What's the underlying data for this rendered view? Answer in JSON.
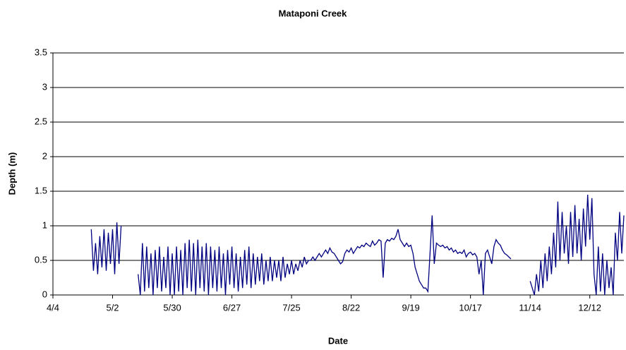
{
  "chart_data": {
    "type": "line",
    "title": "Mataponi Creek",
    "x_label": "Date",
    "y_label": "Depth (m)",
    "xlim": [
      94,
      362
    ],
    "xticks": [
      {
        "value": 94,
        "label": "4/4"
      },
      {
        "value": 122,
        "label": "5/2"
      },
      {
        "value": 150,
        "label": "5/30"
      },
      {
        "value": 178,
        "label": "6/27"
      },
      {
        "value": 206,
        "label": "7/25"
      },
      {
        "value": 234,
        "label": "8/22"
      },
      {
        "value": 262,
        "label": "9/19"
      },
      {
        "value": 290,
        "label": "10/17"
      },
      {
        "value": 318,
        "label": "11/14"
      },
      {
        "value": 346,
        "label": "12/12"
      }
    ],
    "ylim": [
      0,
      3.5
    ],
    "yticks": [
      0,
      0.5,
      1,
      1.5,
      2,
      2.5,
      3,
      3.5
    ],
    "grid": true,
    "x": [
      112,
      113,
      114,
      115,
      116,
      117,
      118,
      119,
      120,
      121,
      122,
      123,
      124,
      125,
      126,
      127,
      134,
      135,
      136,
      137,
      138,
      139,
      140,
      141,
      142,
      143,
      144,
      145,
      146,
      147,
      148,
      149,
      150,
      151,
      152,
      153,
      154,
      155,
      156,
      157,
      158,
      159,
      160,
      161,
      162,
      163,
      164,
      165,
      166,
      167,
      168,
      169,
      170,
      171,
      172,
      173,
      174,
      175,
      176,
      177,
      178,
      179,
      180,
      181,
      182,
      183,
      184,
      185,
      186,
      187,
      188,
      189,
      190,
      191,
      192,
      193,
      194,
      195,
      196,
      197,
      198,
      199,
      200,
      201,
      202,
      203,
      204,
      205,
      206,
      207,
      208,
      209,
      210,
      211,
      212,
      213,
      214,
      215,
      216,
      217,
      218,
      219,
      220,
      221,
      222,
      223,
      224,
      225,
      226,
      227,
      228,
      229,
      230,
      231,
      232,
      233,
      234,
      235,
      236,
      237,
      238,
      239,
      240,
      241,
      242,
      243,
      244,
      245,
      246,
      247,
      248,
      249,
      250,
      251,
      252,
      253,
      254,
      255,
      256,
      257,
      258,
      259,
      260,
      261,
      262,
      263,
      264,
      265,
      266,
      267,
      268,
      269,
      270,
      271,
      272,
      273,
      274,
      275,
      276,
      277,
      278,
      279,
      280,
      281,
      282,
      283,
      284,
      285,
      286,
      287,
      288,
      289,
      290,
      291,
      292,
      293,
      294,
      295,
      296,
      297,
      298,
      299,
      300,
      301,
      302,
      303,
      304,
      305,
      306,
      307,
      308,
      309,
      310,
      318,
      319,
      320,
      321,
      322,
      323,
      324,
      325,
      326,
      327,
      328,
      329,
      330,
      331,
      332,
      333,
      334,
      335,
      336,
      337,
      338,
      339,
      340,
      341,
      342,
      343,
      344,
      345,
      346,
      347,
      348,
      349,
      350,
      351,
      352,
      353,
      354,
      355,
      356,
      357,
      358,
      359,
      360,
      361,
      362
    ],
    "series": [
      {
        "name": "Depth",
        "color": "#000080",
        "values": [
          0.95,
          0.35,
          0.75,
          0.3,
          0.85,
          0.4,
          0.95,
          0.35,
          0.9,
          0.45,
          0.95,
          0.3,
          1.05,
          0.45,
          1.0,
          null,
          0.3,
          0.0,
          0.75,
          0.05,
          0.7,
          0.1,
          0.6,
          0.0,
          0.65,
          0.1,
          0.7,
          0.05,
          0.55,
          0.1,
          0.7,
          0.0,
          0.6,
          0.0,
          0.7,
          0.05,
          0.65,
          0.0,
          0.75,
          0.1,
          0.8,
          0.05,
          0.75,
          0.0,
          0.8,
          0.1,
          0.7,
          0.05,
          0.75,
          0.0,
          0.7,
          0.1,
          0.65,
          0.05,
          0.7,
          0.1,
          0.6,
          0.0,
          0.65,
          0.15,
          0.7,
          0.1,
          0.6,
          0.05,
          0.55,
          0.1,
          0.65,
          0.15,
          0.7,
          0.1,
          0.6,
          0.15,
          0.55,
          0.2,
          0.6,
          0.15,
          0.5,
          0.2,
          0.55,
          0.2,
          0.5,
          0.25,
          0.5,
          0.2,
          0.55,
          0.25,
          0.45,
          0.3,
          0.5,
          0.3,
          0.45,
          0.35,
          0.5,
          0.4,
          0.55,
          0.45,
          0.5,
          0.5,
          0.55,
          0.5,
          0.55,
          0.6,
          0.55,
          0.6,
          0.65,
          0.6,
          0.68,
          0.62,
          0.6,
          0.55,
          0.5,
          0.45,
          0.48,
          0.6,
          0.65,
          0.62,
          0.68,
          0.6,
          0.65,
          0.7,
          0.68,
          0.72,
          0.7,
          0.75,
          0.72,
          0.7,
          0.78,
          0.72,
          0.75,
          0.8,
          0.78,
          0.25,
          0.75,
          0.8,
          0.78,
          0.82,
          0.8,
          0.85,
          0.95,
          0.8,
          0.75,
          0.7,
          0.75,
          0.7,
          0.72,
          0.6,
          0.4,
          0.3,
          0.2,
          0.15,
          0.1,
          0.1,
          0.05,
          0.6,
          1.15,
          0.45,
          0.75,
          0.72,
          0.7,
          0.72,
          0.68,
          0.7,
          0.65,
          0.68,
          0.62,
          0.65,
          0.6,
          0.62,
          0.6,
          0.65,
          0.55,
          0.6,
          0.62,
          0.58,
          0.6,
          0.55,
          0.3,
          0.5,
          0.0,
          0.6,
          0.65,
          0.55,
          0.45,
          0.7,
          0.8,
          0.75,
          0.72,
          0.65,
          0.6,
          0.58,
          0.55,
          0.52,
          null,
          0.2,
          0.1,
          0.0,
          0.3,
          0.05,
          0.5,
          0.1,
          0.6,
          0.2,
          0.7,
          0.3,
          0.9,
          0.4,
          1.35,
          0.5,
          1.2,
          0.6,
          1.0,
          0.45,
          1.2,
          0.55,
          1.3,
          0.6,
          1.1,
          0.5,
          1.25,
          0.7,
          1.45,
          0.8,
          1.4,
          0.3,
          0.0,
          0.7,
          0.05,
          0.6,
          0.0,
          0.5,
          0.1,
          0.4,
          0.0,
          0.9,
          0.5,
          1.2,
          0.6,
          1.15
        ]
      }
    ]
  }
}
